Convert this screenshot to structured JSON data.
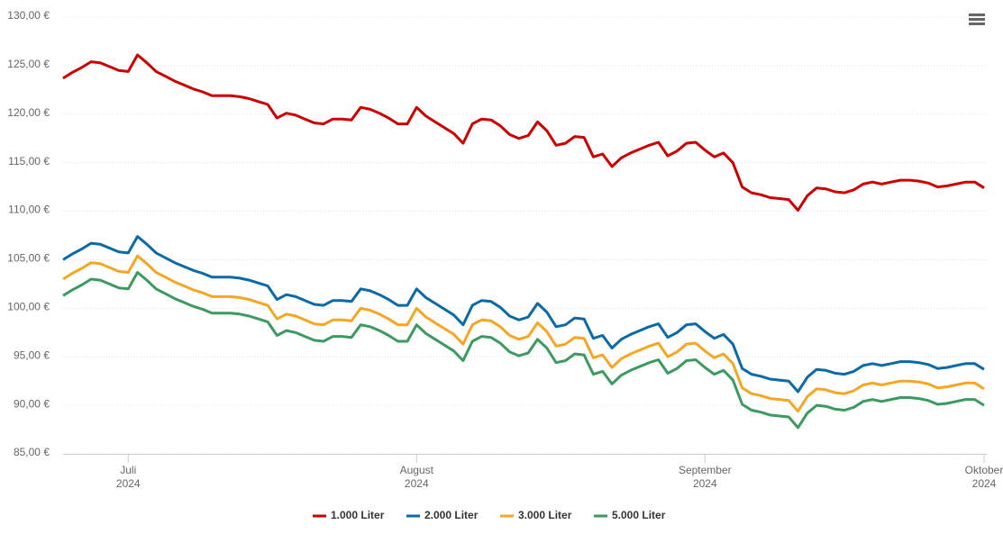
{
  "chart_data": {
    "type": "line",
    "categories": [
      null,
      null,
      null,
      null,
      null,
      null,
      null,
      "Juli\n2024",
      null,
      null,
      null,
      null,
      null,
      null,
      null,
      null,
      null,
      null,
      null,
      null,
      null,
      null,
      null,
      null,
      null,
      null,
      null,
      null,
      null,
      null,
      null,
      null,
      null,
      null,
      null,
      null,
      null,
      null,
      "August\n2024",
      null,
      null,
      null,
      null,
      null,
      null,
      null,
      null,
      null,
      null,
      null,
      null,
      null,
      null,
      null,
      null,
      null,
      null,
      null,
      null,
      null,
      null,
      null,
      null,
      null,
      null,
      null,
      null,
      null,
      null,
      "September\n2024",
      null,
      null,
      null,
      null,
      null,
      null,
      null,
      null,
      null,
      null,
      null,
      null,
      null,
      null,
      null,
      null,
      null,
      null,
      null,
      null,
      null,
      null,
      null,
      null,
      null,
      null,
      null,
      null,
      null,
      "Oktober\n2024"
    ],
    "series": [
      {
        "name": "1.000 Liter",
        "color": "#cc0000",
        "values": [
          123.7,
          124.3,
          124.8,
          125.4,
          125.3,
          124.9,
          124.5,
          124.4,
          126.1,
          125.3,
          124.4,
          123.9,
          123.4,
          123.0,
          122.6,
          122.3,
          121.9,
          121.9,
          121.9,
          121.8,
          121.6,
          121.3,
          121.0,
          119.6,
          120.1,
          119.9,
          119.5,
          119.1,
          119.0,
          119.5,
          119.5,
          119.4,
          120.7,
          120.5,
          120.1,
          119.6,
          119.0,
          119.0,
          120.7,
          119.8,
          119.2,
          118.6,
          118.0,
          117.0,
          119.0,
          119.5,
          119.4,
          118.8,
          117.9,
          117.5,
          117.8,
          119.2,
          118.3,
          116.8,
          117.0,
          117.7,
          117.6,
          115.6,
          115.9,
          114.6,
          115.5,
          116.0,
          116.4,
          116.8,
          117.1,
          115.7,
          116.2,
          117.0,
          117.1,
          116.3,
          115.6,
          116.0,
          115.0,
          112.5,
          111.9,
          111.7,
          111.4,
          111.3,
          111.2,
          110.1,
          111.6,
          112.4,
          112.3,
          112.0,
          111.9,
          112.2,
          112.8,
          113.0,
          112.8,
          113.0,
          113.2,
          113.2,
          113.1,
          112.9,
          112.5,
          112.6,
          112.8,
          113.0,
          113.0,
          112.4
        ]
      },
      {
        "name": "2.000 Liter",
        "color": "#0a6aa8",
        "values": [
          105.0,
          105.6,
          106.1,
          106.7,
          106.6,
          106.2,
          105.8,
          105.7,
          107.4,
          106.6,
          105.7,
          105.2,
          104.7,
          104.3,
          103.9,
          103.6,
          103.2,
          103.2,
          103.2,
          103.1,
          102.9,
          102.6,
          102.3,
          100.9,
          101.4,
          101.2,
          100.8,
          100.4,
          100.3,
          100.8,
          100.8,
          100.7,
          102.0,
          101.8,
          101.4,
          100.9,
          100.3,
          100.3,
          102.0,
          101.1,
          100.5,
          99.9,
          99.3,
          98.3,
          100.3,
          100.8,
          100.7,
          100.1,
          99.2,
          98.8,
          99.1,
          100.5,
          99.6,
          98.1,
          98.3,
          99.0,
          98.9,
          96.9,
          97.2,
          95.9,
          96.8,
          97.3,
          97.7,
          98.1,
          98.4,
          97.0,
          97.5,
          98.3,
          98.4,
          97.6,
          96.9,
          97.3,
          96.3,
          93.8,
          93.2,
          93.0,
          92.7,
          92.6,
          92.5,
          91.4,
          92.9,
          93.7,
          93.6,
          93.3,
          93.2,
          93.5,
          94.1,
          94.3,
          94.1,
          94.3,
          94.5,
          94.5,
          94.4,
          94.2,
          93.8,
          93.9,
          94.1,
          94.3,
          94.3,
          93.7
        ]
      },
      {
        "name": "3.000 Liter",
        "color": "#f5a623",
        "values": [
          103.0,
          103.6,
          104.1,
          104.7,
          104.6,
          104.2,
          103.8,
          103.7,
          105.4,
          104.6,
          103.7,
          103.2,
          102.7,
          102.3,
          101.9,
          101.6,
          101.2,
          101.2,
          101.2,
          101.1,
          100.9,
          100.6,
          100.3,
          98.9,
          99.4,
          99.2,
          98.8,
          98.4,
          98.3,
          98.8,
          98.8,
          98.7,
          100.0,
          99.8,
          99.4,
          98.9,
          98.3,
          98.3,
          100.0,
          99.1,
          98.5,
          97.9,
          97.3,
          96.3,
          98.3,
          98.8,
          98.7,
          98.1,
          97.2,
          96.8,
          97.1,
          98.5,
          97.6,
          96.1,
          96.3,
          97.0,
          96.9,
          94.9,
          95.2,
          93.9,
          94.8,
          95.3,
          95.7,
          96.1,
          96.4,
          95.0,
          95.5,
          96.3,
          96.4,
          95.6,
          94.9,
          95.3,
          94.3,
          91.8,
          91.2,
          91.0,
          90.7,
          90.6,
          90.5,
          89.4,
          90.9,
          91.7,
          91.6,
          91.3,
          91.2,
          91.5,
          92.1,
          92.3,
          92.1,
          92.3,
          92.5,
          92.5,
          92.4,
          92.2,
          91.8,
          91.9,
          92.1,
          92.3,
          92.3,
          91.7
        ]
      },
      {
        "name": "5.000 Liter",
        "color": "#3a9a5f",
        "values": [
          101.3,
          101.9,
          102.4,
          103.0,
          102.9,
          102.5,
          102.1,
          102.0,
          103.7,
          102.9,
          102.0,
          101.5,
          101.0,
          100.6,
          100.2,
          99.9,
          99.5,
          99.5,
          99.5,
          99.4,
          99.2,
          98.9,
          98.6,
          97.2,
          97.7,
          97.5,
          97.1,
          96.7,
          96.6,
          97.1,
          97.1,
          97.0,
          98.3,
          98.1,
          97.7,
          97.2,
          96.6,
          96.6,
          98.3,
          97.4,
          96.8,
          96.2,
          95.6,
          94.6,
          96.6,
          97.1,
          97.0,
          96.4,
          95.5,
          95.1,
          95.4,
          96.8,
          95.9,
          94.4,
          94.6,
          95.3,
          95.2,
          93.2,
          93.5,
          92.2,
          93.1,
          93.6,
          94.0,
          94.4,
          94.7,
          93.3,
          93.8,
          94.6,
          94.7,
          93.9,
          93.2,
          93.6,
          92.6,
          90.1,
          89.5,
          89.3,
          89.0,
          88.9,
          88.8,
          87.7,
          89.2,
          90.0,
          89.9,
          89.6,
          89.5,
          89.8,
          90.4,
          90.6,
          90.4,
          90.6,
          90.8,
          90.8,
          90.7,
          90.5,
          90.1,
          90.2,
          90.4,
          90.6,
          90.6,
          90.0
        ]
      }
    ],
    "ylim": [
      85,
      130
    ],
    "yticks": [
      {
        "value": 85,
        "label": "85,00 €"
      },
      {
        "value": 90,
        "label": "90,00 €"
      },
      {
        "value": 95,
        "label": "95,00 €"
      },
      {
        "value": 100,
        "label": "100,00 €"
      },
      {
        "value": 105,
        "label": "105,00 €"
      },
      {
        "value": 110,
        "label": "110,00 €"
      },
      {
        "value": 115,
        "label": "115,00 €"
      },
      {
        "value": 120,
        "label": "120,00 €"
      },
      {
        "value": 125,
        "label": "125,00 €"
      },
      {
        "value": 130,
        "label": "130,00 €"
      }
    ],
    "grid": true,
    "legend": "bottom"
  }
}
